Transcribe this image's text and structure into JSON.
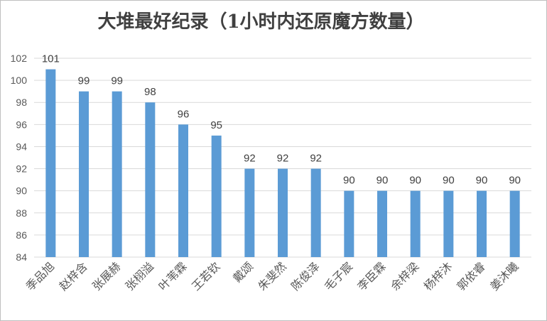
{
  "chart_data": {
    "type": "bar",
    "title": "大堆最好纪录（1小时内还原魔方数量）",
    "categories": [
      "季品旭",
      "赵梓含",
      "张展赫",
      "张栩溢",
      "叶苇霖",
      "王若钦",
      "戴颂",
      "朱斐然",
      "陈俊泽",
      "毛子宸",
      "李臣霖",
      "余梓梁",
      "杨梓沐",
      "郭依睿",
      "姜沐曦"
    ],
    "values": [
      101,
      99,
      99,
      98,
      96,
      95,
      92,
      92,
      92,
      90,
      90,
      90,
      90,
      90,
      90
    ],
    "ylim": [
      84,
      102
    ],
    "yticks": [
      84,
      86,
      88,
      90,
      92,
      94,
      96,
      98,
      100,
      102
    ],
    "grid": true,
    "bar_color": "#5b9bd5",
    "grid_color": "#d9d9d9"
  }
}
